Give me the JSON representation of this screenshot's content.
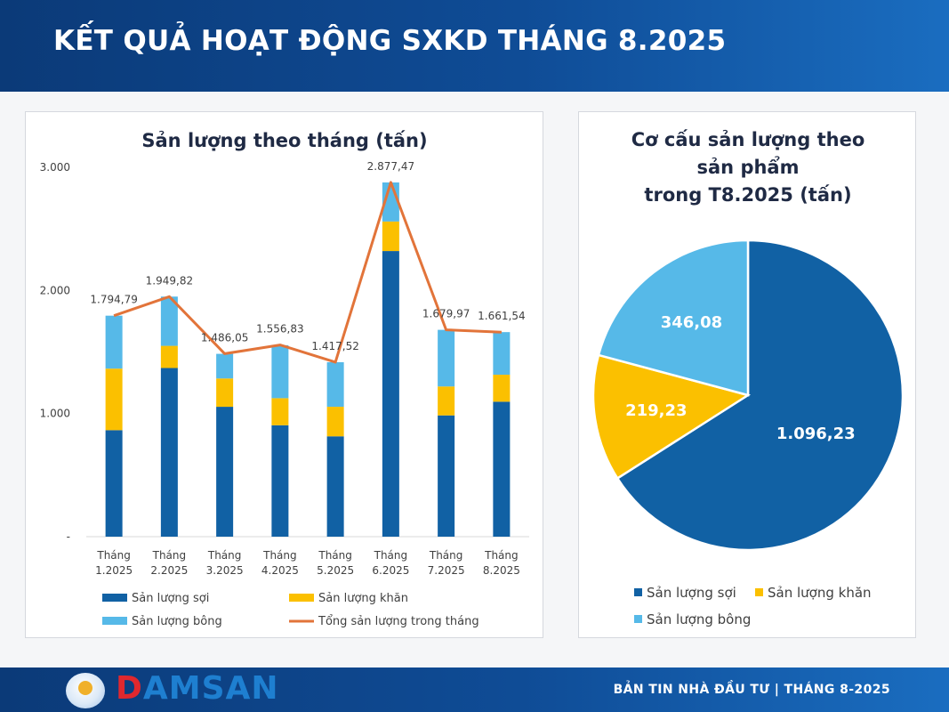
{
  "header": {
    "title": "KẾT QUẢ HOẠT ĐỘNG SXKD THÁNG 8.2025"
  },
  "colors": {
    "soi": "#1161a4",
    "khan": "#fbc000",
    "bong": "#56b9e8",
    "total": "#e2743a",
    "header_bg": "#0f4c96"
  },
  "chart_data": [
    {
      "type": "bar",
      "stacked": true,
      "title": "Sản lượng theo tháng (tấn)",
      "categories": [
        [
          "Tháng",
          "1.2025"
        ],
        [
          "Tháng",
          "2.2025"
        ],
        [
          "Tháng",
          "3.2025"
        ],
        [
          "Tháng",
          "4.2025"
        ],
        [
          "Tháng",
          "5.2025"
        ],
        [
          "Tháng",
          "6.2025"
        ],
        [
          "Tháng",
          "7.2025"
        ],
        [
          "Tháng",
          "8.2025"
        ]
      ],
      "series": [
        {
          "name": "Sản lượng sợi",
          "values": [
            865,
            1370,
            1055,
            905,
            815,
            2320,
            985,
            1096.23
          ]
        },
        {
          "name": "Sản lượng khăn",
          "values": [
            500,
            180,
            230,
            220,
            240,
            240,
            235,
            219.23
          ]
        },
        {
          "name": "Sản lượng bông",
          "values": [
            430,
            400,
            200,
            430,
            362,
            317,
            460,
            346.08
          ]
        }
      ],
      "line_series": {
        "name": "Tổng sản lượng trong tháng",
        "values": [
          1794.79,
          1949.82,
          1486.05,
          1556.83,
          1417.52,
          2877.47,
          1679.97,
          1661.54
        ]
      },
      "total_labels": [
        "1.794,79",
        "1.949,82",
        "1.486,05",
        "1.556,83",
        "1.417,52",
        "2.877,47",
        "1.679,97",
        "1.661,54"
      ],
      "yticks": [
        0,
        1000,
        2000,
        3000
      ],
      "ytick_labels": [
        "-",
        "1.000",
        "2.000",
        "3.000"
      ],
      "ylim": [
        0,
        3000
      ],
      "grid": false,
      "legend_position": "bottom"
    },
    {
      "type": "pie",
      "title_lines": [
        "Cơ cấu sản lượng theo",
        "sản phẩm",
        "trong T8.2025 (tấn)"
      ],
      "labels": [
        "Sản lượng sợi",
        "Sản lượng khăn",
        "Sản lượng bông"
      ],
      "values": [
        1096.23,
        219.23,
        346.08
      ],
      "value_labels": [
        "1.096,23",
        "219,23",
        "346,08"
      ],
      "legend_position": "bottom"
    }
  ],
  "footer": {
    "logo_text": "DAMSAN",
    "logo_first": "D",
    "logo_rest": "AMSAN",
    "right_text": "BẢN TIN NHÀ ĐẦU TƯ  |  THÁNG 8-2025"
  }
}
